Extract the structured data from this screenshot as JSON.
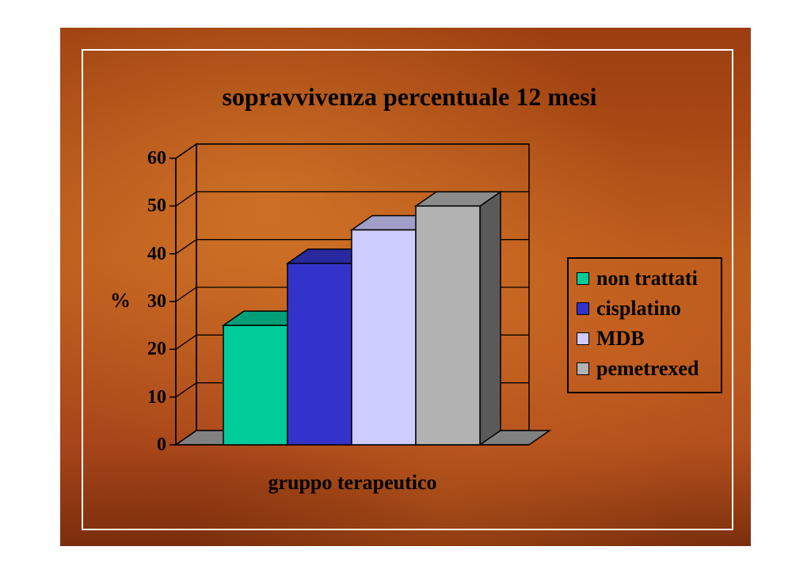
{
  "chart_data": {
    "type": "bar",
    "title": "sopravvivenza percentuale 12 mesi",
    "xlabel": "gruppo terapeutico",
    "ylabel": "%",
    "ylim": [
      0,
      60
    ],
    "yticks": [
      0,
      10,
      20,
      30,
      40,
      50,
      60
    ],
    "grid": true,
    "legend_position": "right",
    "style": "3d",
    "series": [
      {
        "name": "non trattati",
        "value": 25,
        "color": "#00cc99"
      },
      {
        "name": "cisplatino",
        "value": 38,
        "color": "#3333cc"
      },
      {
        "name": "MDB",
        "value": 45,
        "color": "#ccccff"
      },
      {
        "name": "pemetrexed",
        "value": 50,
        "color": "#b2b2b2"
      }
    ]
  }
}
